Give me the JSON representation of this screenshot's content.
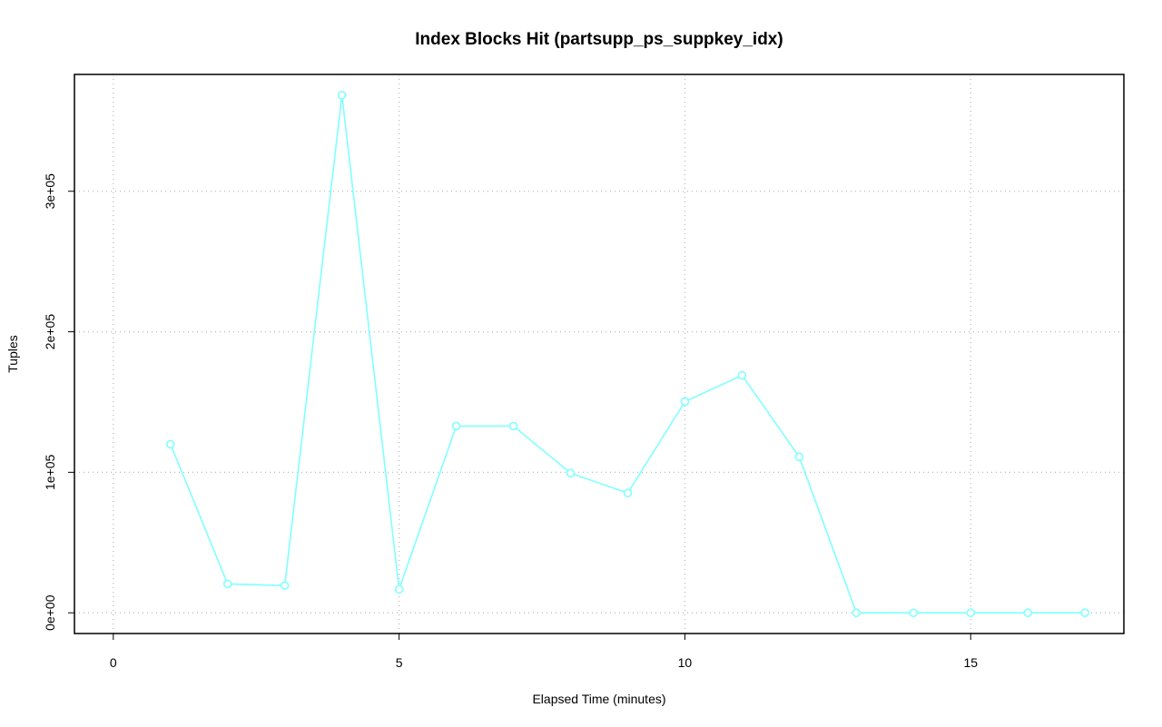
{
  "chart_data": {
    "type": "line",
    "title": "Index Blocks Hit (partsupp_ps_suppkey_idx)",
    "xlabel": "Elapsed Time (minutes)",
    "ylabel": "Tuples",
    "x": [
      1,
      2,
      3,
      4,
      5,
      6,
      7,
      8,
      9,
      10,
      11,
      12,
      13,
      14,
      15,
      16,
      17
    ],
    "series": [
      {
        "name": "partsupp_ps_suppkey_idx",
        "color": "#80ffff",
        "values": [
          120000,
          20600,
          19400,
          368400,
          16800,
          132900,
          132900,
          99400,
          85200,
          150300,
          169000,
          111000,
          0,
          0,
          0,
          0,
          0
        ]
      }
    ],
    "xlim": [
      -0.68,
      17.68
    ],
    "xticks": [
      0,
      5,
      10,
      15
    ],
    "ylim": [
      -14736,
      383136
    ],
    "yticks": [
      {
        "value": 0,
        "label": "0e+00"
      },
      {
        "value": 100000,
        "label": "1e+05"
      },
      {
        "value": 200000,
        "label": "2e+05"
      },
      {
        "value": 300000,
        "label": "3e+05"
      }
    ],
    "grid": true
  }
}
